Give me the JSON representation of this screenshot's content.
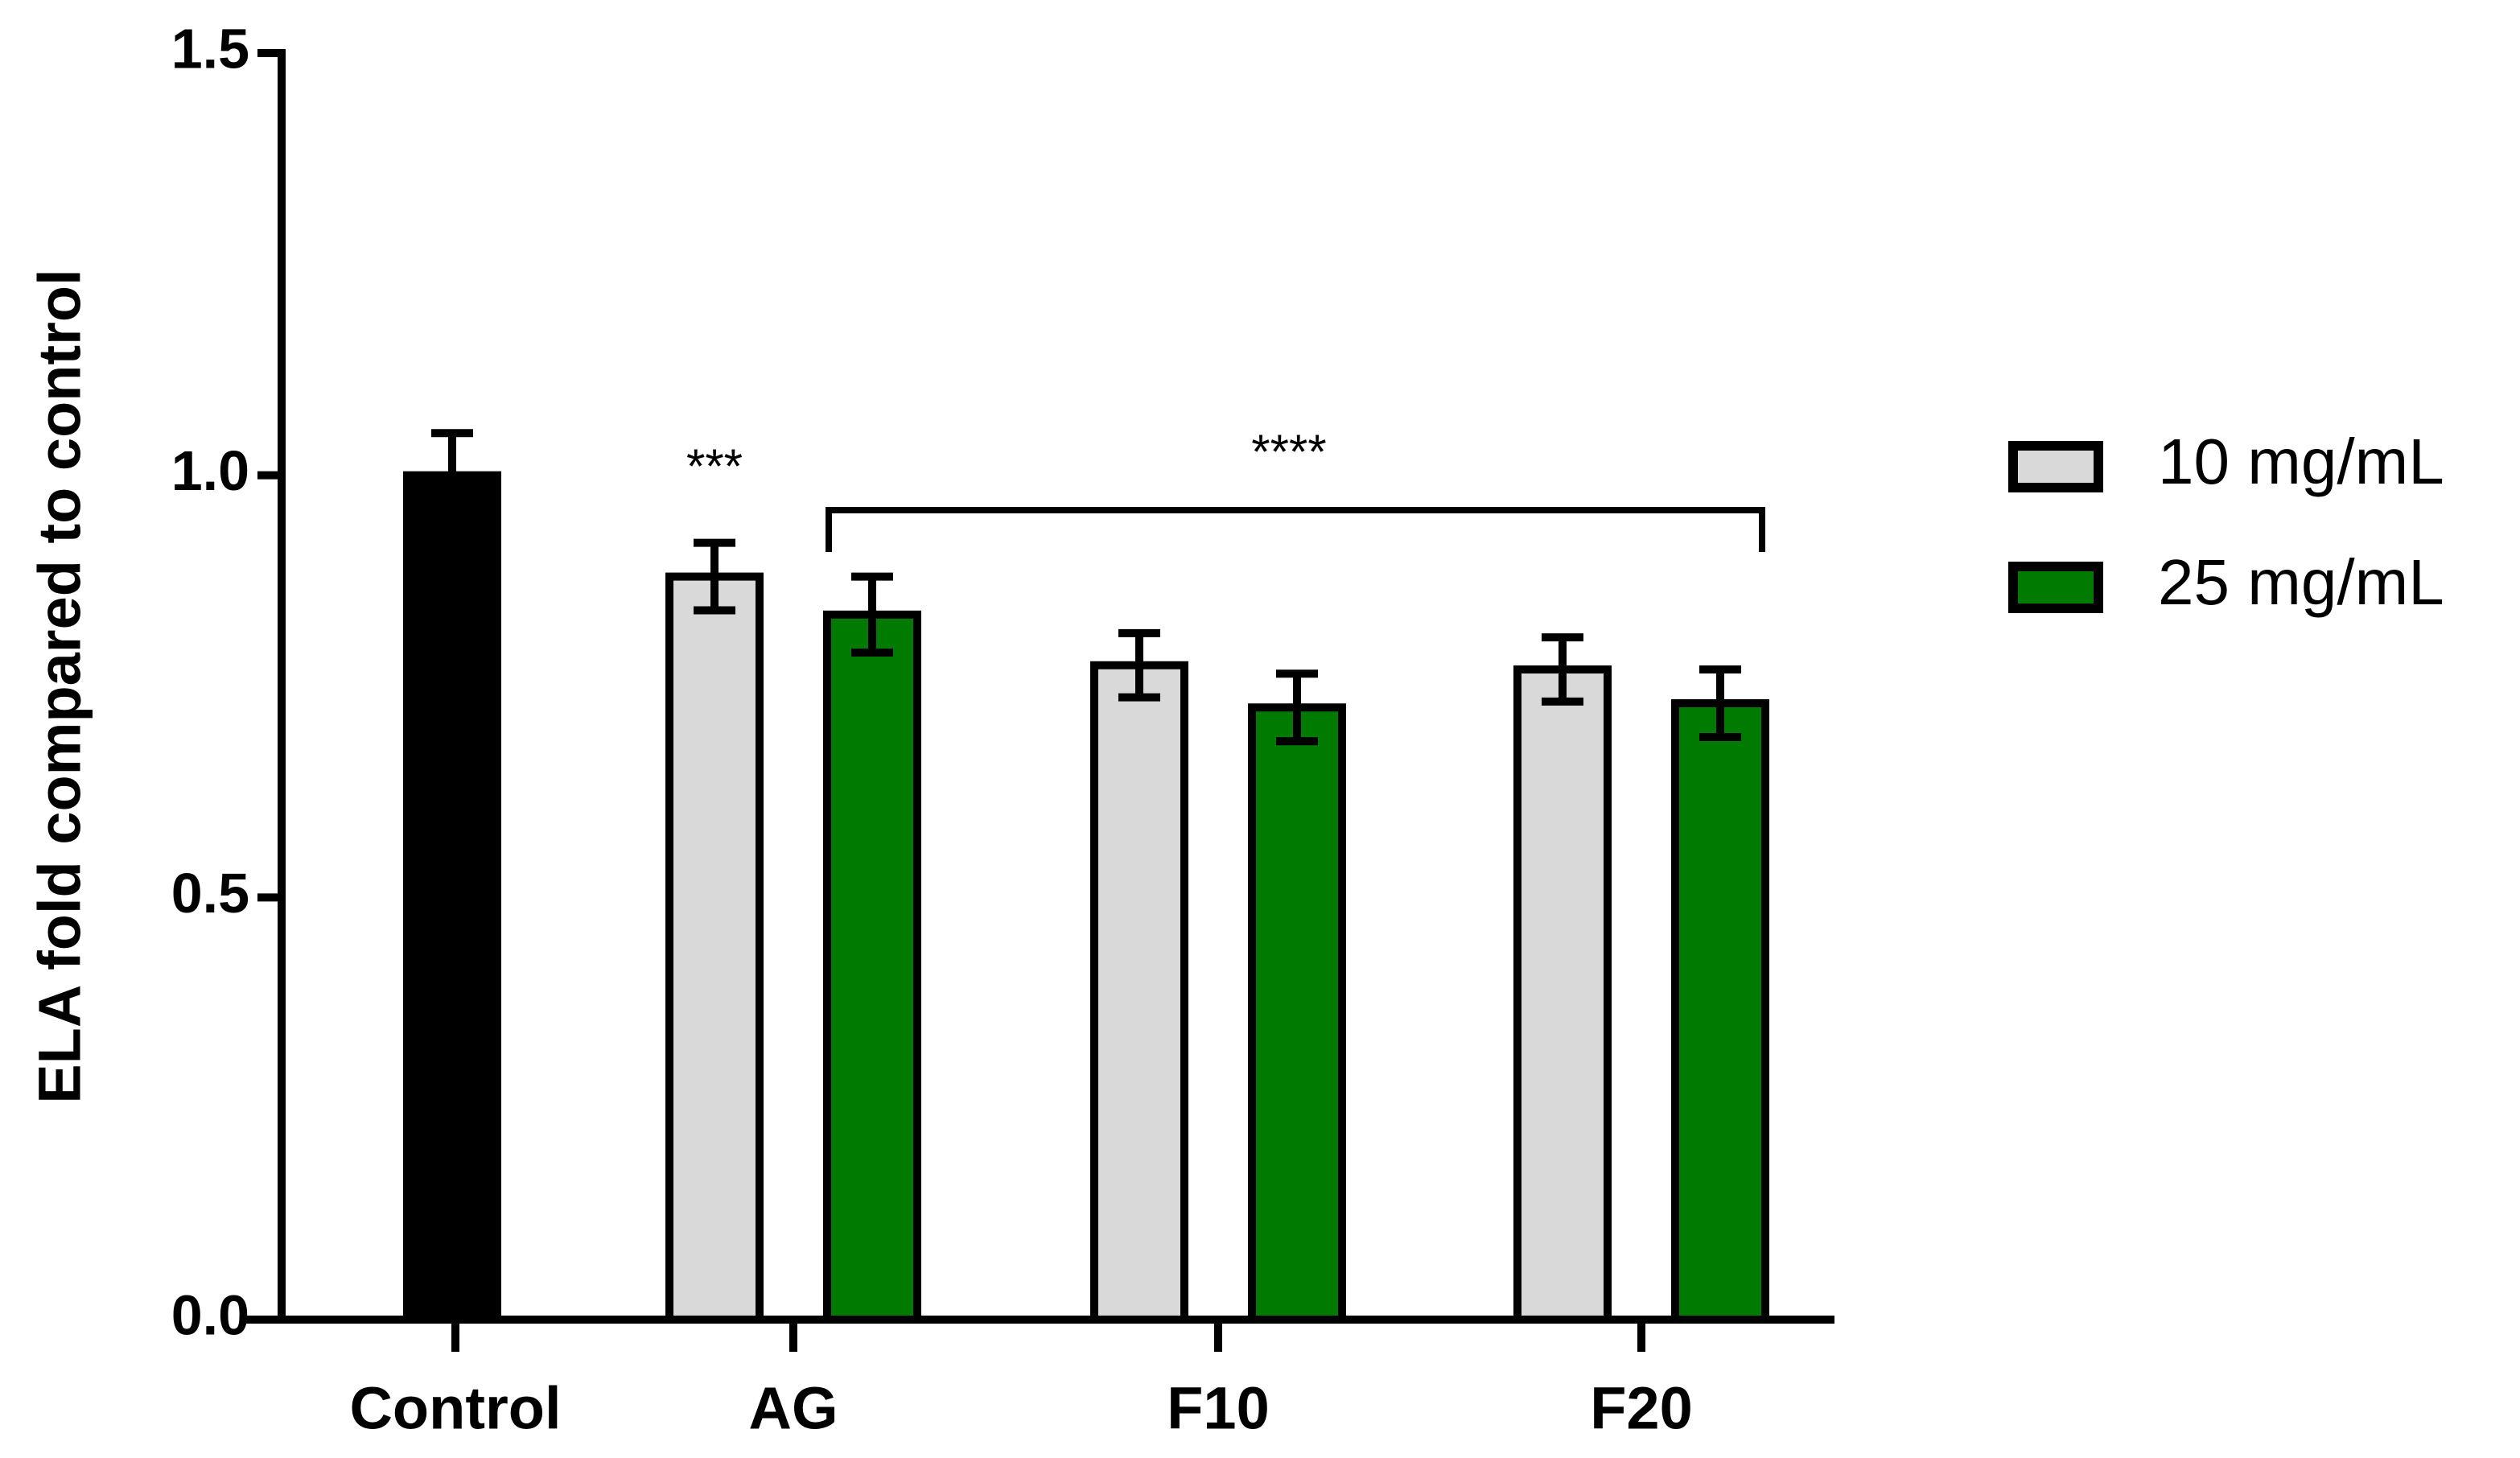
{
  "chart_data": {
    "type": "bar",
    "ylabel": "ELA fold compared to control",
    "categories": [
      "Control",
      "AG",
      "F10",
      "F20"
    ],
    "control": {
      "value": 1.0,
      "error": 0.05,
      "color": "#000000"
    },
    "series": [
      {
        "name": "10 mg/mL",
        "color": "#d9d9d9",
        "values": [
          null,
          0.88,
          0.775,
          0.77
        ],
        "errors": [
          null,
          0.04,
          0.038,
          0.038
        ]
      },
      {
        "name": "25 mg/mL",
        "color": "#007a00",
        "values": [
          null,
          0.835,
          0.725,
          0.73
        ],
        "errors": [
          null,
          0.045,
          0.04,
          0.04
        ]
      }
    ],
    "annotations": [
      "***",
      "****"
    ],
    "ylim": [
      0,
      1.5
    ],
    "yticks": [
      {
        "value": 0,
        "label": "0.0"
      },
      0.5,
      {
        "value": 1,
        "label": "1.0"
      },
      1.5
    ],
    "legend": "right"
  }
}
